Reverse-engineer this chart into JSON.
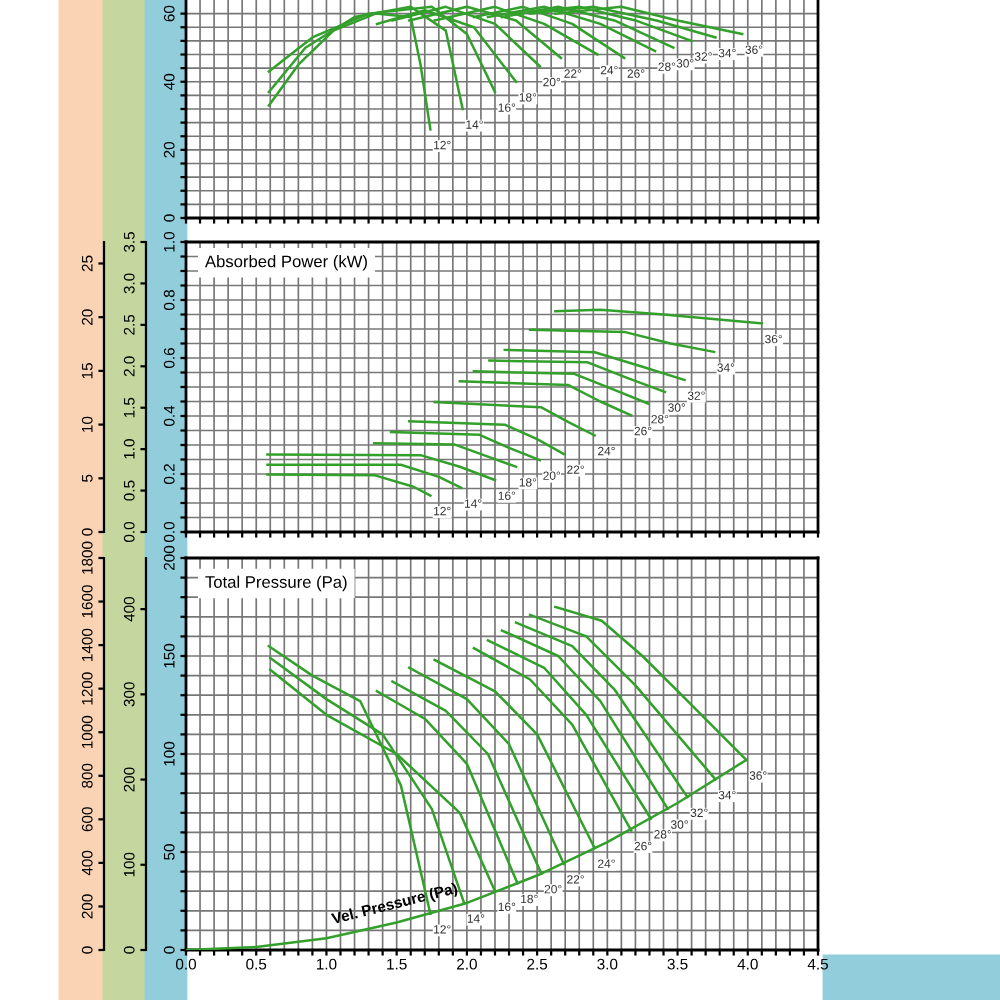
{
  "chart_data": [
    {
      "type": "line",
      "grid": true,
      "tick_labels": "y",
      "xlim": [
        0,
        4.5
      ],
      "ylim": [
        0,
        64
      ],
      "xticks": [
        {
          "value": 0,
          "label": null
        },
        {
          "value": 0.1,
          "label": null
        },
        {
          "value": 0.2,
          "label": null
        },
        {
          "value": 0.3,
          "label": null
        },
        {
          "value": 0.4,
          "label": null
        },
        {
          "value": 0.5,
          "label": null
        },
        {
          "value": 0.6,
          "label": null
        },
        {
          "value": 0.7,
          "label": null
        },
        {
          "value": 0.8,
          "label": null
        },
        {
          "value": 0.9,
          "label": null
        },
        {
          "value": 1,
          "label": null
        },
        {
          "value": 1.1,
          "label": null
        },
        {
          "value": 1.2,
          "label": null
        },
        {
          "value": 1.3,
          "label": null
        },
        {
          "value": 1.4,
          "label": null
        },
        {
          "value": 1.5,
          "label": null
        },
        {
          "value": 1.6,
          "label": null
        },
        {
          "value": 1.7,
          "label": null
        },
        {
          "value": 1.8,
          "label": null
        },
        {
          "value": 1.9,
          "label": null
        },
        {
          "value": 2,
          "label": null
        },
        {
          "value": 2.1,
          "label": null
        },
        {
          "value": 2.2,
          "label": null
        },
        {
          "value": 2.3,
          "label": null
        },
        {
          "value": 2.4,
          "label": null
        },
        {
          "value": 2.5,
          "label": null
        },
        {
          "value": 2.6,
          "label": null
        },
        {
          "value": 2.7,
          "label": null
        },
        {
          "value": 2.8,
          "label": null
        },
        {
          "value": 2.9,
          "label": null
        },
        {
          "value": 3,
          "label": null
        },
        {
          "value": 3.1,
          "label": null
        },
        {
          "value": 3.2,
          "label": null
        },
        {
          "value": 3.3,
          "label": null
        },
        {
          "value": 3.4,
          "label": null
        },
        {
          "value": 3.5,
          "label": null
        },
        {
          "value": 3.6,
          "label": null
        },
        {
          "value": 3.7,
          "label": null
        },
        {
          "value": 3.8,
          "label": null
        },
        {
          "value": 3.9,
          "label": null
        },
        {
          "value": 4,
          "label": null
        },
        {
          "value": 4.1,
          "label": null
        },
        {
          "value": 4.2,
          "label": null
        },
        {
          "value": 4.3,
          "label": null
        },
        {
          "value": 4.4,
          "label": null
        },
        {
          "value": 4.5,
          "label": null
        }
      ],
      "yticks": [
        0,
        {
          "value": 4,
          "label": null
        },
        {
          "value": 8,
          "label": null
        },
        {
          "value": 12,
          "label": null
        },
        {
          "value": 16,
          "label": null
        },
        20,
        {
          "value": 24,
          "label": null
        },
        {
          "value": 28,
          "label": null
        },
        {
          "value": 32,
          "label": null
        },
        {
          "value": 36,
          "label": null
        },
        40,
        {
          "value": 44,
          "label": null
        },
        {
          "value": 48,
          "label": null
        },
        {
          "value": 52,
          "label": null
        },
        {
          "value": 56,
          "label": null
        },
        60
      ],
      "series": [
        {
          "name": "12°",
          "color": "#33a02c",
          "x": [
            0.59,
            0.8,
            1.05,
            1.35,
            1.6,
            1.67,
            1.74
          ],
          "values": [
            33,
            45,
            55,
            60,
            59,
            45,
            26
          ]
        },
        {
          "name": "14°",
          "color": "#33a02c",
          "x": [
            0.59,
            0.85,
            1.2,
            1.6,
            1.85,
            1.97
          ],
          "values": [
            37,
            50,
            59,
            62,
            55,
            32
          ]
        },
        {
          "name": "16°",
          "color": "#33a02c",
          "x": [
            0.59,
            0.9,
            1.3,
            1.75,
            2.0,
            2.2
          ],
          "values": [
            43,
            53,
            60,
            62,
            54,
            37
          ]
        },
        {
          "name": "18°",
          "color": "#33a02c",
          "x": [
            1.36,
            1.7,
            2.05,
            2.35
          ],
          "values": [
            57,
            61,
            56,
            40
          ]
        },
        {
          "name": "20°",
          "color": "#33a02c",
          "x": [
            1.47,
            1.85,
            2.2,
            2.52
          ],
          "values": [
            58,
            62,
            57,
            44.5
          ]
        },
        {
          "name": "22°",
          "color": "#33a02c",
          "x": [
            1.59,
            2.0,
            2.35,
            2.67
          ],
          "values": [
            58,
            62,
            58,
            47
          ]
        },
        {
          "name": "24°",
          "color": "#33a02c",
          "x": [
            1.77,
            2.2,
            2.55,
            2.93
          ],
          "values": [
            58,
            62,
            57,
            48
          ]
        },
        {
          "name": "26°",
          "color": "#33a02c",
          "x": [
            2.05,
            2.4,
            2.75,
            3.12
          ],
          "values": [
            59,
            62,
            57,
            47
          ]
        },
        {
          "name": "28°",
          "color": "#33a02c",
          "x": [
            2.15,
            2.55,
            2.95,
            3.34
          ],
          "values": [
            59,
            62,
            57,
            49
          ]
        },
        {
          "name": "30°",
          "color": "#33a02c",
          "x": [
            2.25,
            2.65,
            3.05,
            3.47
          ],
          "values": [
            59,
            62,
            58,
            50
          ]
        },
        {
          "name": "32°",
          "color": "#33a02c",
          "x": [
            2.35,
            2.8,
            3.2,
            3.6
          ],
          "values": [
            60,
            62,
            58,
            52
          ]
        },
        {
          "name": "34°",
          "color": "#33a02c",
          "x": [
            2.45,
            2.9,
            3.35,
            3.77
          ],
          "values": [
            60,
            62,
            58,
            53
          ]
        },
        {
          "name": "36°",
          "color": "#33a02c",
          "x": [
            2.63,
            3.1,
            3.5,
            3.96
          ],
          "values": [
            60,
            62,
            58,
            54
          ]
        }
      ]
    },
    {
      "type": "line",
      "title": "Absorbed Power (kW)",
      "grid": true,
      "tick_labels": "y",
      "xlim": [
        0,
        4.5
      ],
      "ylim": [
        0,
        1
      ],
      "xticks": [
        {
          "value": 0,
          "label": null
        },
        {
          "value": 0.1,
          "label": null
        },
        {
          "value": 0.2,
          "label": null
        },
        {
          "value": 0.3,
          "label": null
        },
        {
          "value": 0.4,
          "label": null
        },
        {
          "value": 0.5,
          "label": null
        },
        {
          "value": 0.6,
          "label": null
        },
        {
          "value": 0.7,
          "label": null
        },
        {
          "value": 0.8,
          "label": null
        },
        {
          "value": 0.9,
          "label": null
        },
        {
          "value": 1,
          "label": null
        },
        {
          "value": 1.1,
          "label": null
        },
        {
          "value": 1.2,
          "label": null
        },
        {
          "value": 1.3,
          "label": null
        },
        {
          "value": 1.4,
          "label": null
        },
        {
          "value": 1.5,
          "label": null
        },
        {
          "value": 1.6,
          "label": null
        },
        {
          "value": 1.7,
          "label": null
        },
        {
          "value": 1.8,
          "label": null
        },
        {
          "value": 1.9,
          "label": null
        },
        {
          "value": 2,
          "label": null
        },
        {
          "value": 2.1,
          "label": null
        },
        {
          "value": 2.2,
          "label": null
        },
        {
          "value": 2.3,
          "label": null
        },
        {
          "value": 2.4,
          "label": null
        },
        {
          "value": 2.5,
          "label": null
        },
        {
          "value": 2.6,
          "label": null
        },
        {
          "value": 2.7,
          "label": null
        },
        {
          "value": 2.8,
          "label": null
        },
        {
          "value": 2.9,
          "label": null
        },
        {
          "value": 3,
          "label": null
        },
        {
          "value": 3.1,
          "label": null
        },
        {
          "value": 3.2,
          "label": null
        },
        {
          "value": 3.3,
          "label": null
        },
        {
          "value": 3.4,
          "label": null
        },
        {
          "value": 3.5,
          "label": null
        },
        {
          "value": 3.6,
          "label": null
        },
        {
          "value": 3.7,
          "label": null
        },
        {
          "value": 3.8,
          "label": null
        },
        {
          "value": 3.9,
          "label": null
        },
        {
          "value": 4,
          "label": null
        },
        {
          "value": 4.1,
          "label": null
        },
        {
          "value": 4.2,
          "label": null
        },
        {
          "value": 4.3,
          "label": null
        },
        {
          "value": 4.4,
          "label": null
        },
        {
          "value": 4.5,
          "label": null
        }
      ],
      "yticks": [
        {
          "value": 0,
          "label": "0.0"
        },
        {
          "value": 0.05,
          "label": null
        },
        {
          "value": 0.1,
          "label": null
        },
        {
          "value": 0.15,
          "label": null
        },
        {
          "value": 0.2,
          "label": "0.2"
        },
        {
          "value": 0.25,
          "label": null
        },
        {
          "value": 0.3,
          "label": null
        },
        {
          "value": 0.35,
          "label": null
        },
        {
          "value": 0.4,
          "label": "0.4"
        },
        {
          "value": 0.45,
          "label": null
        },
        {
          "value": 0.5,
          "label": null
        },
        {
          "value": 0.55,
          "label": null
        },
        {
          "value": 0.6,
          "label": "0.6"
        },
        {
          "value": 0.65,
          "label": null
        },
        {
          "value": 0.7,
          "label": null
        },
        {
          "value": 0.75,
          "label": null
        },
        {
          "value": 0.8,
          "label": "0.8"
        },
        {
          "value": 0.85,
          "label": null
        },
        {
          "value": 0.9,
          "label": null
        },
        {
          "value": 0.95,
          "label": null
        },
        {
          "value": 1,
          "label": "1.0"
        }
      ],
      "y2lim": [
        0,
        3.5
      ],
      "y2ticks": [
        {
          "value": 0,
          "label": "0.0"
        },
        {
          "value": 0.5,
          "label": "0.5"
        },
        {
          "value": 1,
          "label": "1.0"
        },
        {
          "value": 1.5,
          "label": "1.5"
        },
        {
          "value": 2,
          "label": "2.0"
        },
        {
          "value": 2.5,
          "label": "2.5"
        },
        {
          "value": 3,
          "label": "3.0"
        },
        {
          "value": 3.5,
          "label": "3.5"
        }
      ],
      "y3lim": [
        0,
        27
      ],
      "y3ticks": [
        0,
        5,
        10,
        15,
        20,
        25
      ],
      "series": [
        {
          "name": "12°",
          "color": "#33a02c",
          "x": [
            0.58,
            1.34,
            1.62,
            1.74
          ],
          "values": [
            0.198,
            0.196,
            0.156,
            0.126
          ]
        },
        {
          "name": "14°",
          "color": "#33a02c",
          "x": [
            0.58,
            1.53,
            1.8,
            1.96
          ],
          "values": [
            0.232,
            0.232,
            0.19,
            0.152
          ]
        },
        {
          "name": "16°",
          "color": "#33a02c",
          "x": [
            0.58,
            1.67,
            1.95,
            2.2
          ],
          "values": [
            0.267,
            0.265,
            0.225,
            0.179
          ]
        },
        {
          "name": "18°",
          "color": "#33a02c",
          "x": [
            1.34,
            1.91,
            2.15,
            2.35
          ],
          "values": [
            0.306,
            0.302,
            0.26,
            0.225
          ]
        },
        {
          "name": "20°",
          "color": "#33a02c",
          "x": [
            1.46,
            2.09,
            2.3,
            2.52
          ],
          "values": [
            0.345,
            0.335,
            0.29,
            0.248
          ]
        },
        {
          "name": "22°",
          "color": "#33a02c",
          "x": [
            1.59,
            2.27,
            2.5,
            2.69
          ],
          "values": [
            0.382,
            0.37,
            0.32,
            0.269
          ]
        },
        {
          "name": "24°",
          "color": "#33a02c",
          "x": [
            1.77,
            2.53,
            2.72,
            2.91
          ],
          "values": [
            0.448,
            0.43,
            0.38,
            0.333
          ]
        },
        {
          "name": "26°",
          "color": "#33a02c",
          "x": [
            1.95,
            2.72,
            2.95,
            3.17
          ],
          "values": [
            0.52,
            0.507,
            0.45,
            0.402
          ]
        },
        {
          "name": "28°",
          "color": "#33a02c",
          "x": [
            2.05,
            2.76,
            3.05,
            3.29
          ],
          "values": [
            0.554,
            0.546,
            0.49,
            0.443
          ]
        },
        {
          "name": "30°",
          "color": "#33a02c",
          "x": [
            2.16,
            2.86,
            3.15,
            3.41
          ],
          "values": [
            0.591,
            0.585,
            0.53,
            0.483
          ]
        },
        {
          "name": "32°",
          "color": "#33a02c",
          "x": [
            2.27,
            2.91,
            3.25,
            3.55
          ],
          "values": [
            0.628,
            0.62,
            0.57,
            0.524
          ]
        },
        {
          "name": "34°",
          "color": "#33a02c",
          "x": [
            2.45,
            3.12,
            3.45,
            3.76
          ],
          "values": [
            0.697,
            0.69,
            0.65,
            0.621
          ]
        },
        {
          "name": "36°",
          "color": "#33a02c",
          "x": [
            2.63,
            2.95,
            3.4,
            4.1
          ],
          "values": [
            0.761,
            0.766,
            0.75,
            0.719
          ]
        }
      ]
    },
    {
      "type": "line",
      "title": "Total Pressure (Pa)",
      "grid": true,
      "xlim": [
        0,
        4.5
      ],
      "ylim": [
        0,
        200
      ],
      "xticks": [
        {
          "value": 0,
          "label": "0.0"
        },
        {
          "value": 0.1,
          "label": null
        },
        {
          "value": 0.2,
          "label": null
        },
        {
          "value": 0.3,
          "label": null
        },
        {
          "value": 0.4,
          "label": null
        },
        {
          "value": 0.5,
          "label": "0.5"
        },
        {
          "value": 0.6,
          "label": null
        },
        {
          "value": 0.7,
          "label": null
        },
        {
          "value": 0.8,
          "label": null
        },
        {
          "value": 0.9,
          "label": null
        },
        {
          "value": 1,
          "label": "1.0"
        },
        {
          "value": 1.1,
          "label": null
        },
        {
          "value": 1.2,
          "label": null
        },
        {
          "value": 1.3,
          "label": null
        },
        {
          "value": 1.4,
          "label": null
        },
        {
          "value": 1.5,
          "label": "1.5"
        },
        {
          "value": 1.6,
          "label": null
        },
        {
          "value": 1.7,
          "label": null
        },
        {
          "value": 1.8,
          "label": null
        },
        {
          "value": 1.9,
          "label": null
        },
        {
          "value": 2,
          "label": "2.0"
        },
        {
          "value": 2.1,
          "label": null
        },
        {
          "value": 2.2,
          "label": null
        },
        {
          "value": 2.3,
          "label": null
        },
        {
          "value": 2.4,
          "label": null
        },
        {
          "value": 2.5,
          "label": "2.5"
        },
        {
          "value": 2.6,
          "label": null
        },
        {
          "value": 2.7,
          "label": null
        },
        {
          "value": 2.8,
          "label": null
        },
        {
          "value": 2.9,
          "label": null
        },
        {
          "value": 3,
          "label": "3.0"
        },
        {
          "value": 3.1,
          "label": null
        },
        {
          "value": 3.2,
          "label": null
        },
        {
          "value": 3.3,
          "label": null
        },
        {
          "value": 3.4,
          "label": null
        },
        {
          "value": 3.5,
          "label": "3.5"
        },
        {
          "value": 3.6,
          "label": null
        },
        {
          "value": 3.7,
          "label": null
        },
        {
          "value": 3.8,
          "label": null
        },
        {
          "value": 3.9,
          "label": null
        },
        {
          "value": 4,
          "label": "4.0"
        },
        {
          "value": 4.1,
          "label": null
        },
        {
          "value": 4.2,
          "label": null
        },
        {
          "value": 4.3,
          "label": null
        },
        {
          "value": 4.4,
          "label": null
        },
        {
          "value": 4.5,
          "label": "4.5"
        }
      ],
      "yticks": [
        0,
        {
          "value": 10,
          "label": null
        },
        {
          "value": 20,
          "label": null
        },
        {
          "value": 30,
          "label": null
        },
        {
          "value": 40,
          "label": null
        },
        50,
        {
          "value": 60,
          "label": null
        },
        {
          "value": 70,
          "label": null
        },
        {
          "value": 80,
          "label": null
        },
        {
          "value": 90,
          "label": null
        },
        100,
        {
          "value": 110,
          "label": null
        },
        {
          "value": 120,
          "label": null
        },
        {
          "value": 130,
          "label": null
        },
        {
          "value": 140,
          "label": null
        },
        150,
        {
          "value": 160,
          "label": null
        },
        {
          "value": 170,
          "label": null
        },
        {
          "value": 180,
          "label": null
        },
        {
          "value": 190,
          "label": null
        },
        200
      ],
      "y2lim": [
        0,
        460
      ],
      "y2ticks": [
        0,
        100,
        200,
        300,
        400
      ],
      "y3lim": [
        0,
        1800
      ],
      "y3ticks": [
        0,
        200,
        400,
        600,
        800,
        1000,
        1200,
        1400,
        1600,
        1800
      ],
      "series": [
        {
          "name": "12°",
          "color": "#33a02c",
          "x": [
            0.59,
            0.9,
            1.24,
            1.53,
            1.74
          ],
          "values": [
            155,
            140,
            127,
            84,
            18.5
          ]
        },
        {
          "name": "14°",
          "color": "#33a02c",
          "x": [
            0.6,
            1.0,
            1.4,
            1.75,
            1.98
          ],
          "values": [
            149,
            128,
            110,
            72,
            24
          ]
        },
        {
          "name": "16°",
          "color": "#33a02c",
          "x": [
            0.6,
            1.0,
            1.5,
            1.95,
            2.2
          ],
          "values": [
            143,
            120,
            100,
            70,
            30
          ]
        },
        {
          "name": "18°",
          "color": "#33a02c",
          "x": [
            1.36,
            1.7,
            2.0,
            2.36
          ],
          "values": [
            132,
            118,
            95,
            34
          ]
        },
        {
          "name": "20°",
          "color": "#33a02c",
          "x": [
            1.47,
            1.85,
            2.15,
            2.53
          ],
          "values": [
            137,
            122,
            100,
            39
          ]
        },
        {
          "name": "22°",
          "color": "#33a02c",
          "x": [
            1.59,
            2.0,
            2.3,
            2.69
          ],
          "values": [
            144,
            128,
            105,
            44
          ]
        },
        {
          "name": "24°",
          "color": "#33a02c",
          "x": [
            1.77,
            2.2,
            2.5,
            2.91
          ],
          "values": [
            148,
            132,
            110,
            52
          ]
        },
        {
          "name": "26°",
          "color": "#33a02c",
          "x": [
            2.05,
            2.45,
            2.75,
            3.17
          ],
          "values": [
            154,
            138,
            115,
            61
          ]
        },
        {
          "name": "28°",
          "color": "#33a02c",
          "x": [
            2.15,
            2.55,
            2.85,
            3.31
          ],
          "values": [
            158,
            144,
            120,
            67
          ]
        },
        {
          "name": "30°",
          "color": "#33a02c",
          "x": [
            2.25,
            2.65,
            2.95,
            3.43
          ],
          "values": [
            163,
            150,
            127,
            72
          ]
        },
        {
          "name": "32°",
          "color": "#33a02c",
          "x": [
            2.35,
            2.75,
            3.05,
            3.57
          ],
          "values": [
            167,
            155,
            133,
            78
          ]
        },
        {
          "name": "34°",
          "color": "#33a02c",
          "x": [
            2.45,
            2.85,
            3.2,
            3.77
          ],
          "values": [
            171,
            160,
            135,
            87
          ]
        },
        {
          "name": "36°",
          "color": "#33a02c",
          "x": [
            2.63,
            2.96,
            3.25,
            3.53,
            3.99
          ],
          "values": [
            175,
            168,
            150,
            130,
            97
          ]
        },
        {
          "name": "Vel. Pressure (Pa)",
          "color": "#33a02c",
          "x": [
            0,
            0.5,
            1,
            1.5,
            2,
            2.5,
            3,
            3.5,
            3.99
          ],
          "values": [
            0,
            1.5,
            6,
            14,
            24,
            38,
            55,
            75,
            97
          ]
        }
      ]
    }
  ]
}
